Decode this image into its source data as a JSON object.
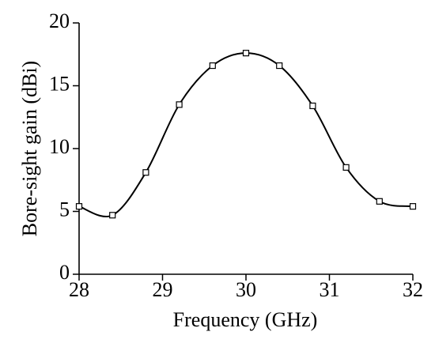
{
  "chart_data": {
    "type": "line",
    "x_label": "Frequency (GHz)",
    "y_label": "Bore-sight gain (dBi)",
    "x": [
      28,
      28.4,
      28.8,
      29.2,
      29.6,
      30,
      30.4,
      30.8,
      31.2,
      31.6,
      32
    ],
    "series": [
      {
        "name": "Bore-sight gain",
        "color": "#000000",
        "values": [
          5.4,
          4.7,
          8.1,
          13.5,
          16.6,
          17.6,
          16.6,
          13.4,
          8.5,
          5.8,
          5.4
        ]
      }
    ],
    "xlim": [
      28,
      32
    ],
    "xticks": [
      28,
      29,
      30,
      31,
      32
    ],
    "ylim": [
      0,
      20
    ],
    "yticks": [
      0,
      5,
      10,
      15,
      20
    ],
    "markers": "square",
    "grid": false
  }
}
